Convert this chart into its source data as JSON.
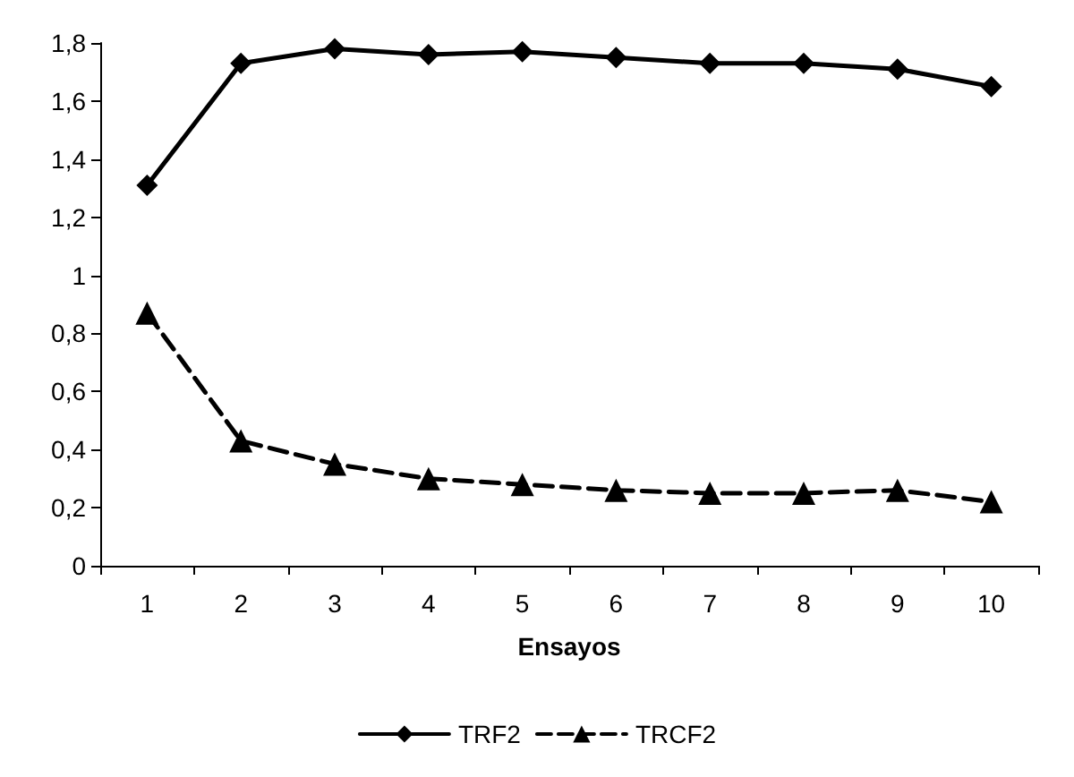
{
  "chart_data": {
    "type": "line",
    "xlabel": "Ensayos",
    "categories": [
      "1",
      "2",
      "3",
      "4",
      "5",
      "6",
      "7",
      "8",
      "9",
      "10"
    ],
    "series": [
      {
        "name": "TRF2",
        "color": "#000000",
        "marker": "diamond",
        "line_style": "solid",
        "values": [
          1.31,
          1.73,
          1.78,
          1.76,
          1.77,
          1.75,
          1.73,
          1.73,
          1.71,
          1.65
        ]
      },
      {
        "name": "TRCF2",
        "color": "#000000",
        "marker": "triangle",
        "line_style": "dashed",
        "values": [
          0.87,
          0.43,
          0.35,
          0.3,
          0.28,
          0.26,
          0.25,
          0.25,
          0.26,
          0.22
        ]
      }
    ],
    "ylim": [
      0,
      1.8
    ],
    "yticks": [
      0,
      {
        "value": 0.2,
        "label": "0,2"
      },
      {
        "value": 0.4,
        "label": "0,4"
      },
      {
        "value": 0.6,
        "label": "0,6"
      },
      {
        "value": 0.8,
        "label": "0,8"
      },
      1,
      {
        "value": 1.2,
        "label": "1,2"
      },
      {
        "value": 1.4,
        "label": "1,4"
      },
      {
        "value": 1.6,
        "label": "1,6"
      },
      {
        "value": 1.8,
        "label": "1,8"
      }
    ],
    "grid": false,
    "legend": "bottom"
  }
}
